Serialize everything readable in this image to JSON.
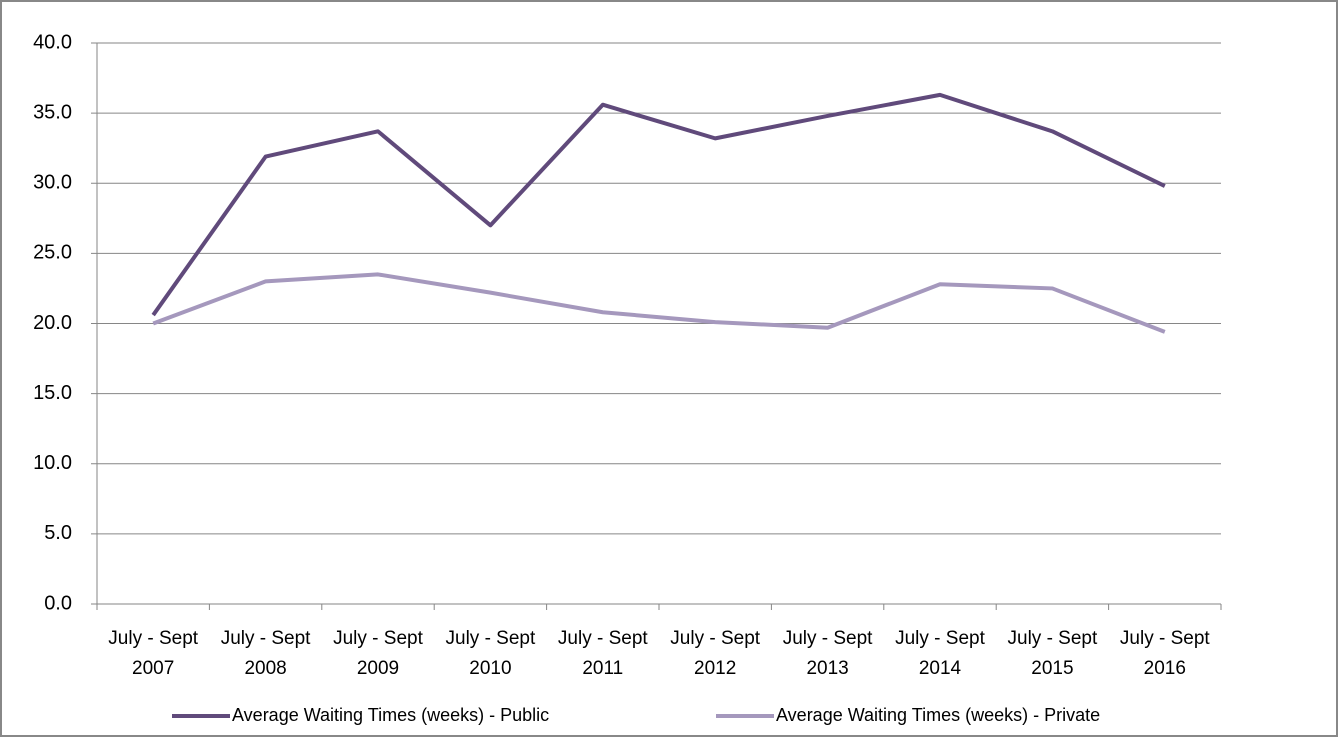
{
  "chart_data": {
    "type": "line",
    "categories": [
      "July - Sept 2007",
      "July - Sept 2008",
      "July - Sept 2009",
      "July - Sept 2010",
      "July - Sept 2011",
      "July - Sept 2012",
      "July - Sept 2013",
      "July - Sept 2014",
      "July - Sept 2015",
      "July - Sept 2016"
    ],
    "series": [
      {
        "name": "Average Waiting Times (weeks) - Public",
        "color": "#604a7b",
        "values": [
          20.6,
          31.9,
          33.7,
          27.0,
          35.6,
          33.2,
          34.8,
          36.3,
          33.7,
          29.8
        ]
      },
      {
        "name": "Average Waiting Times (weeks) - Private",
        "color": "#a598bd",
        "values": [
          20.0,
          23.0,
          23.5,
          22.2,
          20.8,
          20.1,
          19.7,
          22.8,
          22.5,
          19.4
        ]
      }
    ],
    "ylim": [
      0,
      40
    ],
    "yticks": [
      {
        "value": 0,
        "label": "0.0"
      },
      {
        "value": 5,
        "label": "5.0"
      },
      {
        "value": 10,
        "label": "10.0"
      },
      {
        "value": 15,
        "label": "15.0"
      },
      {
        "value": 20,
        "label": "20.0"
      },
      {
        "value": 25,
        "label": "25.0"
      },
      {
        "value": 30,
        "label": "30.0"
      },
      {
        "value": 35,
        "label": "35.0"
      },
      {
        "value": 40,
        "label": "40.0"
      }
    ],
    "grid": true,
    "legend": "bottom"
  }
}
